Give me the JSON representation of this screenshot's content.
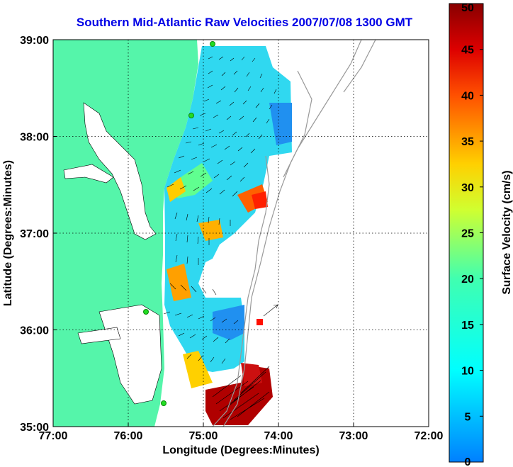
{
  "chart_data": {
    "type": "heatmap",
    "title": "Southern Mid-Atlantic Raw Velocities 2007/07/08 1300 GMT",
    "xlabel": "Longitude (Degrees:Minutes)",
    "ylabel": "Latitude (Degrees:Minutes)",
    "x_ticks": [
      "77:00",
      "76:00",
      "75:00",
      "74:00",
      "73:00",
      "72:00"
    ],
    "y_ticks": [
      "39:00",
      "38:00",
      "37:00",
      "36:00",
      "35:00"
    ],
    "xlim": [
      -77,
      -72
    ],
    "ylim": [
      35,
      39
    ],
    "grid": true,
    "colorbar": {
      "label": "Surface Velocity (cm/s)",
      "ticks": [
        "50",
        "45",
        "40",
        "35",
        "30",
        "25",
        "20",
        "15",
        "10",
        "5",
        "0"
      ],
      "range": [
        0,
        50
      ]
    },
    "colors": {
      "land": "#55f5aa",
      "title": "#0000e6",
      "station": "#22dd22"
    }
  }
}
